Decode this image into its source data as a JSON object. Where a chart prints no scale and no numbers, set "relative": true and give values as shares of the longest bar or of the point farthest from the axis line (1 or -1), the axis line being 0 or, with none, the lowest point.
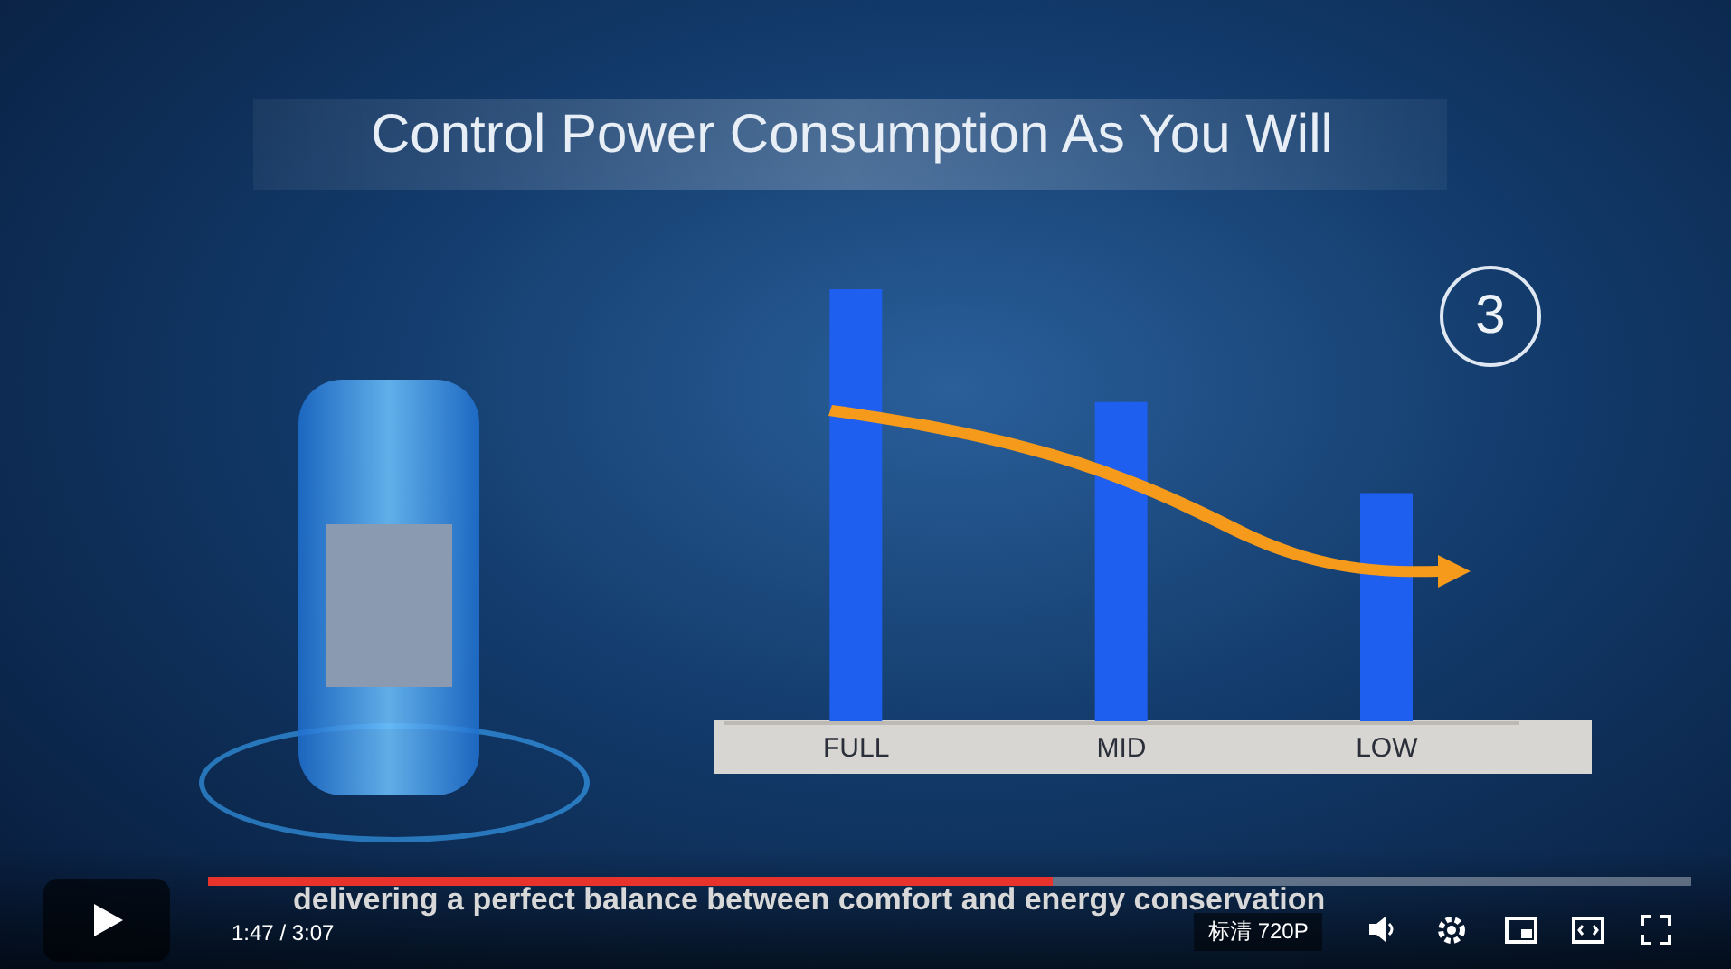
{
  "chart_data": {
    "type": "bar",
    "relative": true,
    "title": "Control Power Consumption As You Will",
    "categories": [
      "FULL",
      "MID",
      "LOW"
    ],
    "values": [
      1,
      0.74,
      0.53
    ],
    "color": "#1f5ff0",
    "annotations": [
      "3",
      "delivering a perfect balance between comfort and energy conservation",
      "1:47 / 3:07",
      "标清 720P"
    ]
  }
}
